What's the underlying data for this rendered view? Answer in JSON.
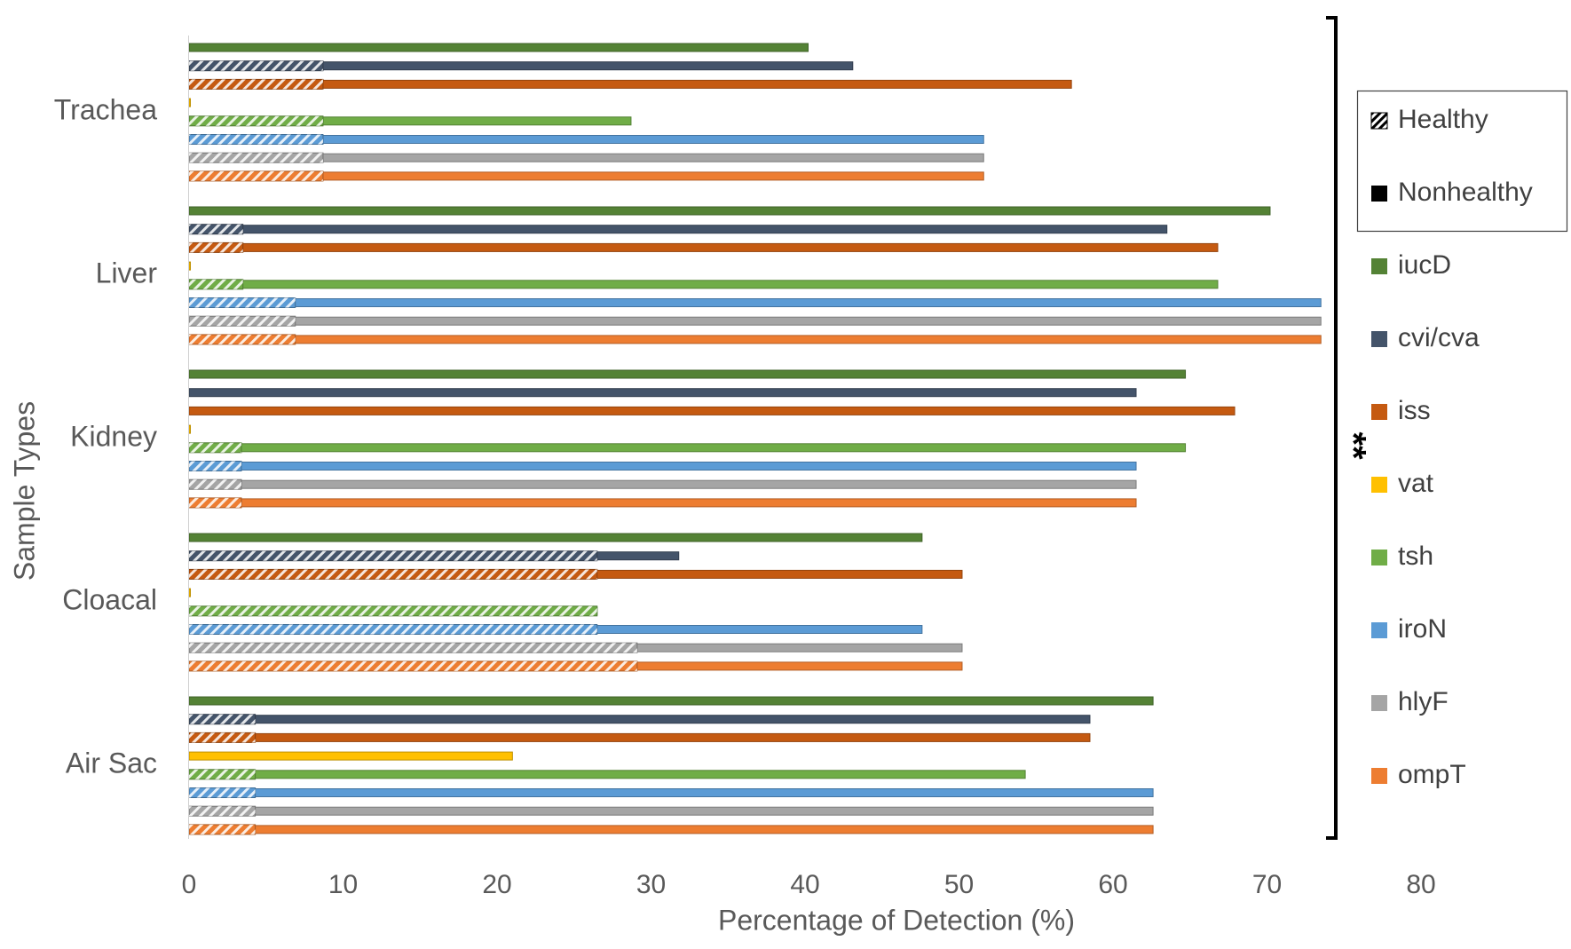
{
  "chart_data": {
    "type": "bar",
    "orientation": "horizontal",
    "xlabel": "Percentage of Detection (%)",
    "ylabel": "Sample Types",
    "xlim": [
      0,
      80
    ],
    "xticks": [
      "0",
      "10",
      "20",
      "30",
      "40",
      "50",
      "60",
      "70",
      "80"
    ],
    "grid": false,
    "categories": [
      "Trachea",
      "Liver",
      "Kidney",
      "Cloacal",
      "Air Sac"
    ],
    "series": [
      {
        "name": "iucD",
        "color": "#548235",
        "healthy": [
          0,
          0,
          0,
          0,
          0
        ],
        "nonhealthy": [
          40.2,
          70.2,
          64.7,
          47.6,
          62.6
        ]
      },
      {
        "name": "cvi/cva",
        "color": "#44546A",
        "healthy": [
          8.7,
          3.5,
          0,
          26.5,
          4.3
        ],
        "nonhealthy": [
          43.1,
          63.5,
          61.5,
          31.8,
          58.5
        ]
      },
      {
        "name": "iss",
        "color": "#C55A11",
        "healthy": [
          8.7,
          3.5,
          0,
          26.5,
          4.3
        ],
        "nonhealthy": [
          57.3,
          66.8,
          67.9,
          50.2,
          58.5
        ]
      },
      {
        "name": "vat",
        "color": "#FFC000",
        "healthy": [
          0,
          0,
          0,
          0,
          0
        ],
        "nonhealthy": [
          0,
          0,
          0,
          0,
          21
        ]
      },
      {
        "name": "tsh",
        "color": "#70AD47",
        "healthy": [
          8.7,
          3.5,
          3.4,
          26.5,
          4.3
        ],
        "nonhealthy": [
          28.7,
          66.8,
          64.7,
          26.5,
          54.3
        ]
      },
      {
        "name": "iroN",
        "color": "#5B9BD5",
        "healthy": [
          8.7,
          6.9,
          3.4,
          26.5,
          4.3
        ],
        "nonhealthy": [
          51.6,
          73.5,
          61.5,
          47.6,
          62.6
        ]
      },
      {
        "name": "hlyF",
        "color": "#A5A5A5",
        "healthy": [
          8.7,
          6.9,
          3.4,
          29.1,
          4.3
        ],
        "nonhealthy": [
          51.6,
          73.5,
          61.5,
          50.2,
          62.6
        ]
      },
      {
        "name": "ompT",
        "color": "#ED7D31",
        "healthy": [
          8.7,
          6.9,
          3.4,
          29.1,
          4.3
        ],
        "nonhealthy": [
          51.6,
          73.5,
          61.5,
          50.2,
          62.6
        ]
      }
    ],
    "legend": {
      "position": "right",
      "boxed_entries": [
        "Healthy",
        "Nonhealthy"
      ],
      "entries": [
        "iucD",
        "cvi/cva",
        "iss",
        "vat",
        "tsh",
        "iroN",
        "hlyF",
        "ompT"
      ]
    },
    "annotation": "**"
  }
}
